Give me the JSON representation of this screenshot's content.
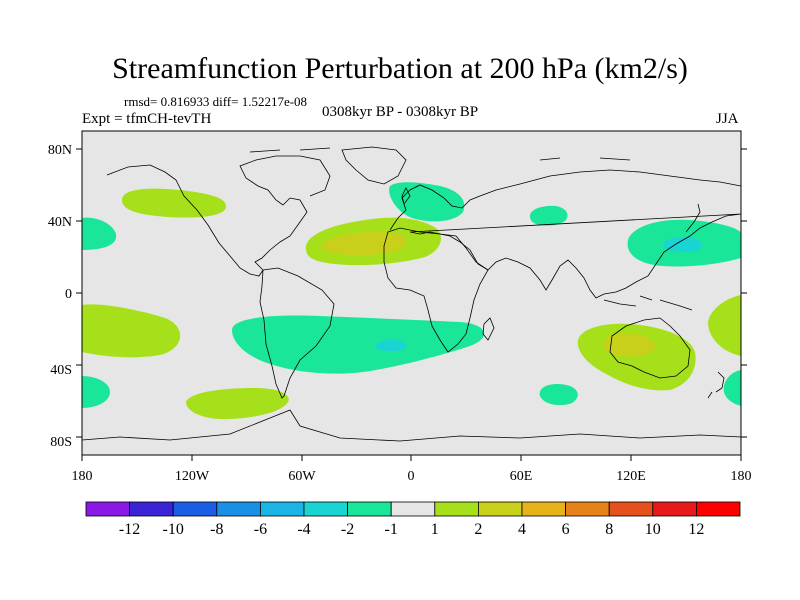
{
  "header": {
    "title": "Streamfunction Perturbation at 200 hPa (km2/s)",
    "stats": "rmsd= 0.816933 diff= 1.52217e-08",
    "experiment": "Expt = tfmCH-tevTH",
    "period": "0308kyr BP - 0308kyr BP",
    "season": "JJA"
  },
  "axes": {
    "lat_ticks": [
      "80N",
      "40N",
      "0",
      "40S",
      "80S"
    ],
    "lon_ticks": [
      "180",
      "120W",
      "60W",
      "0",
      "60E",
      "120E",
      "180"
    ]
  },
  "colorbar": {
    "labels": [
      "-12",
      "-10",
      "-8",
      "-6",
      "-4",
      "-2",
      "-1",
      "1",
      "2",
      "4",
      "6",
      "8",
      "10",
      "12"
    ],
    "colors": [
      "#8a19e6",
      "#3a24d6",
      "#1a5ee6",
      "#1a8fe6",
      "#1ab4e6",
      "#1ad4d4",
      "#1ae69a",
      "#e6e6e6",
      "#a6e01a",
      "#c8d01a",
      "#e6b41a",
      "#e6821a",
      "#e6501a",
      "#e61a1a",
      "#ff0000"
    ]
  },
  "chart_data": {
    "type": "contour-map",
    "title": "Streamfunction Perturbation at 200 hPa (km2/s)",
    "units": "km2/s",
    "levels": [
      -12,
      -10,
      -8,
      -6,
      -4,
      -2,
      -1,
      1,
      2,
      4,
      6,
      8,
      10,
      12
    ],
    "lon_range": [
      -180,
      180
    ],
    "lat_range": [
      -90,
      90
    ],
    "background_level": "between -1 and 1",
    "anomalies": [
      {
        "region": "North Pacific / NW America",
        "lon": -135,
        "lat": 48,
        "level": "1 to 2"
      },
      {
        "region": "North Atlantic / N Africa",
        "lon": -10,
        "lat": 32,
        "level": "2 to 4"
      },
      {
        "region": "Europe",
        "lon": 10,
        "lat": 55,
        "level": "-2 to -1"
      },
      {
        "region": "Central Asia",
        "lon": 78,
        "lat": 45,
        "level": "-2 to -1"
      },
      {
        "region": "East Asia / NW Pacific",
        "lon": 150,
        "lat": 30,
        "level": "-4 to -2"
      },
      {
        "region": "South Atlantic",
        "lon": -10,
        "lat": -30,
        "level": "-4 to -2"
      },
      {
        "region": "Australia",
        "lon": 130,
        "lat": -33,
        "level": "2 to 4"
      },
      {
        "region": "South Pacific",
        "lon": -160,
        "lat": -20,
        "level": "1 to 2"
      },
      {
        "region": "South America / Drake",
        "lon": -90,
        "lat": -60,
        "level": "1 to 2"
      },
      {
        "region": "Southern Indian Ocean",
        "lon": 85,
        "lat": -52,
        "level": "-2 to -1"
      }
    ]
  }
}
